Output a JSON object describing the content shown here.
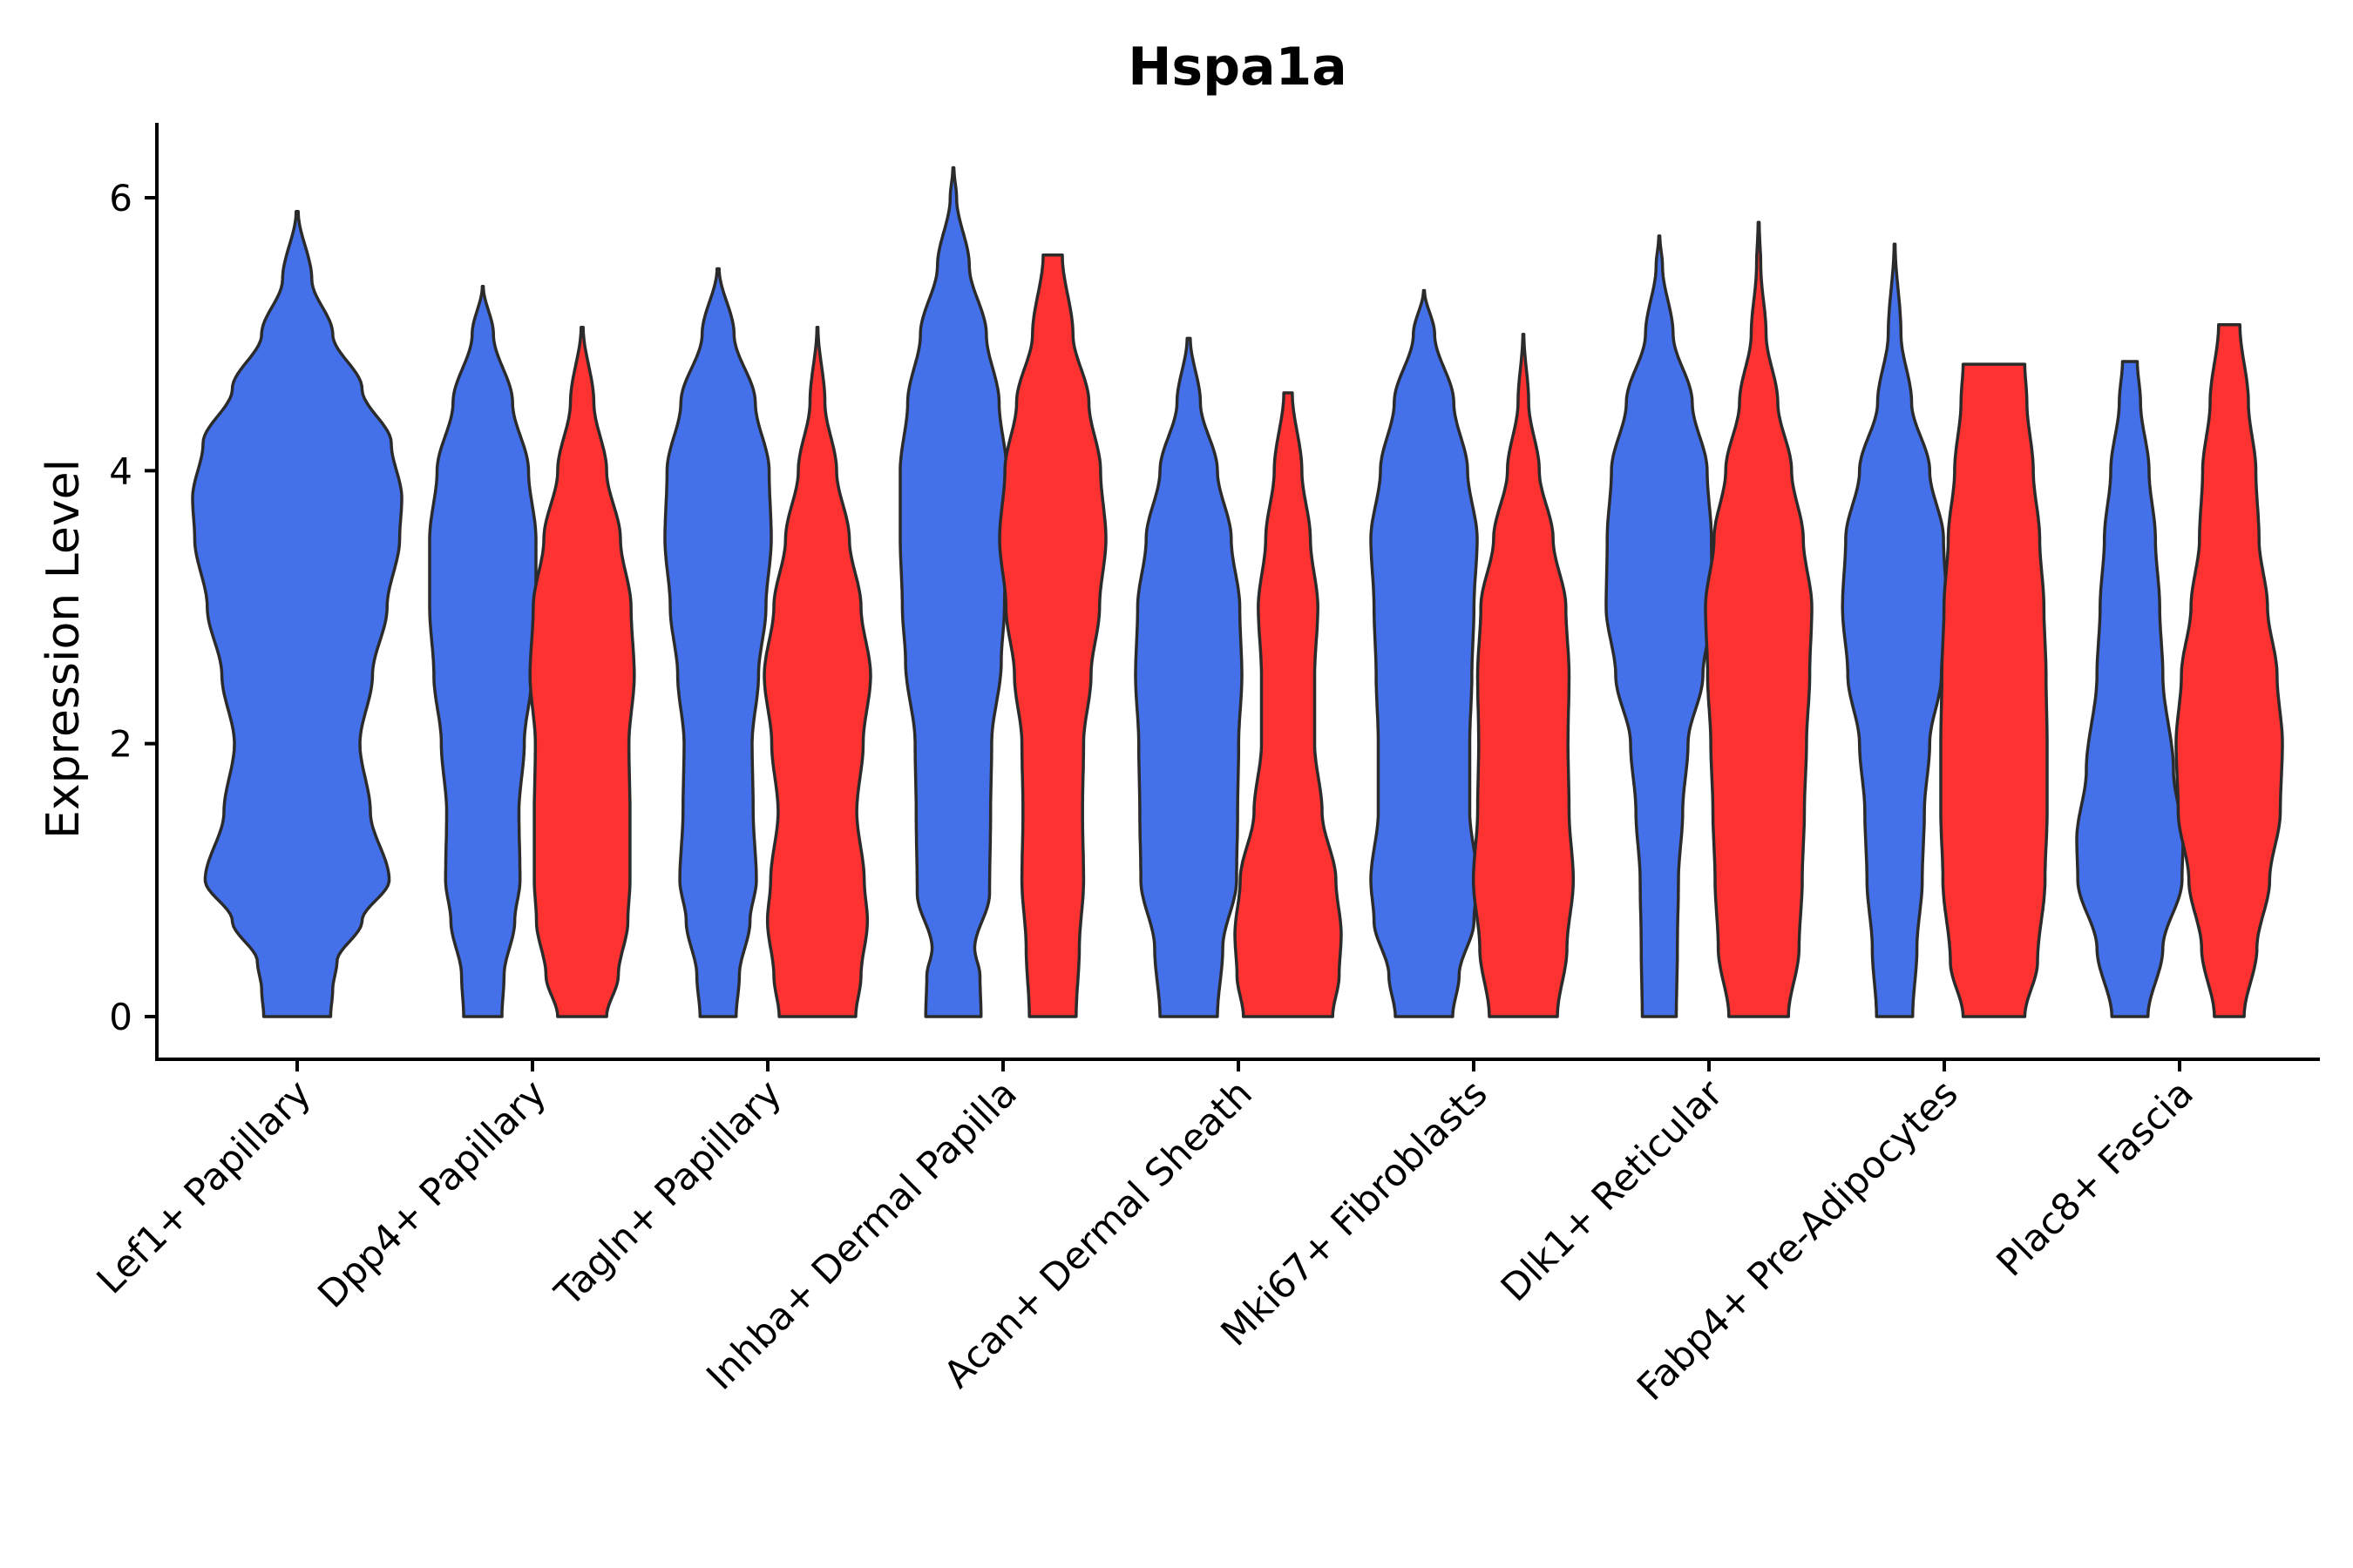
{
  "chart_data": {
    "type": "violin",
    "title": "Hspa1a",
    "ylabel": "Expression Level",
    "xlabel": "",
    "ylim": [
      -0.3,
      6.5
    ],
    "yticks": [
      "0",
      "2",
      "4",
      "6"
    ],
    "grid": false,
    "legend": "none",
    "series": [
      {
        "name": "blue",
        "color": "#4470EA"
      },
      {
        "name": "red",
        "color": "#FF3232"
      }
    ],
    "categories": [
      {
        "label": "Lef1+ Papillary",
        "violins": [
          {
            "series": "blue",
            "max": 5.9,
            "width": [
              [
                0,
                0.32
              ],
              [
                0.2,
                0.34
              ],
              [
                0.4,
                0.38
              ],
              [
                0.7,
                0.62
              ],
              [
                1.0,
                0.88
              ],
              [
                1.5,
                0.7
              ],
              [
                2.0,
                0.6
              ],
              [
                2.5,
                0.72
              ],
              [
                3.0,
                0.86
              ],
              [
                3.5,
                0.98
              ],
              [
                3.8,
                1.0
              ],
              [
                4.2,
                0.9
              ],
              [
                4.6,
                0.62
              ],
              [
                5.0,
                0.34
              ],
              [
                5.4,
                0.14
              ],
              [
                5.9,
                0.01
              ]
            ]
          }
        ]
      },
      {
        "label": "Dpp4+ Papillary",
        "violins": [
          {
            "series": "blue",
            "max": 5.35,
            "width": [
              [
                0,
                0.36
              ],
              [
                0.3,
                0.4
              ],
              [
                0.7,
                0.6
              ],
              [
                1.0,
                0.7
              ],
              [
                1.5,
                0.68
              ],
              [
                2.0,
                0.78
              ],
              [
                2.5,
                0.92
              ],
              [
                3.0,
                1.0
              ],
              [
                3.5,
                1.0
              ],
              [
                4.0,
                0.86
              ],
              [
                4.5,
                0.56
              ],
              [
                5.0,
                0.2
              ],
              [
                5.35,
                0.01
              ]
            ]
          },
          {
            "series": "red",
            "max": 5.05,
            "width": [
              [
                0,
                0.46
              ],
              [
                0.3,
                0.68
              ],
              [
                0.7,
                0.86
              ],
              [
                1.0,
                0.9
              ],
              [
                1.5,
                0.9
              ],
              [
                2.0,
                0.88
              ],
              [
                2.5,
                0.98
              ],
              [
                3.0,
                0.92
              ],
              [
                3.5,
                0.72
              ],
              [
                4.0,
                0.46
              ],
              [
                4.5,
                0.22
              ],
              [
                5.05,
                0.02
              ]
            ]
          }
        ]
      },
      {
        "label": "Tagln+ Papillary",
        "violins": [
          {
            "series": "blue",
            "max": 5.48,
            "width": [
              [
                0,
                0.34
              ],
              [
                0.3,
                0.4
              ],
              [
                0.7,
                0.6
              ],
              [
                1.0,
                0.72
              ],
              [
                1.5,
                0.66
              ],
              [
                2.0,
                0.64
              ],
              [
                2.5,
                0.76
              ],
              [
                3.0,
                0.9
              ],
              [
                3.5,
                1.0
              ],
              [
                4.0,
                0.96
              ],
              [
                4.5,
                0.7
              ],
              [
                5.0,
                0.3
              ],
              [
                5.48,
                0.02
              ]
            ]
          },
          {
            "series": "red",
            "max": 5.05,
            "width": [
              [
                0,
                0.72
              ],
              [
                0.3,
                0.82
              ],
              [
                0.7,
                0.94
              ],
              [
                1.0,
                0.88
              ],
              [
                1.5,
                0.74
              ],
              [
                2.0,
                0.86
              ],
              [
                2.5,
                1.0
              ],
              [
                3.0,
                0.82
              ],
              [
                3.5,
                0.6
              ],
              [
                4.0,
                0.36
              ],
              [
                4.5,
                0.14
              ],
              [
                5.05,
                0.01
              ]
            ]
          }
        ]
      },
      {
        "label": "Inhba+ Dermal Papilla",
        "violins": [
          {
            "series": "blue",
            "max": 6.22,
            "width": [
              [
                0,
                0.52
              ],
              [
                0.3,
                0.5
              ],
              [
                0.5,
                0.4
              ],
              [
                0.9,
                0.68
              ],
              [
                1.5,
                0.7
              ],
              [
                2.0,
                0.72
              ],
              [
                2.6,
                0.9
              ],
              [
                3.0,
                0.96
              ],
              [
                3.5,
                1.0
              ],
              [
                4.0,
                1.0
              ],
              [
                4.5,
                0.86
              ],
              [
                5.0,
                0.62
              ],
              [
                5.5,
                0.3
              ],
              [
                6.0,
                0.06
              ],
              [
                6.22,
                0.01
              ]
            ]
          },
          {
            "series": "red",
            "max": 5.58,
            "width": [
              [
                0,
                0.44
              ],
              [
                0.5,
                0.5
              ],
              [
                1.0,
                0.58
              ],
              [
                1.5,
                0.56
              ],
              [
                2.0,
                0.58
              ],
              [
                2.5,
                0.72
              ],
              [
                3.0,
                0.88
              ],
              [
                3.5,
                1.0
              ],
              [
                4.0,
                0.9
              ],
              [
                4.5,
                0.68
              ],
              [
                5.0,
                0.38
              ],
              [
                5.58,
                0.18
              ]
            ]
          }
        ]
      },
      {
        "label": "Acan+ Dermal Sheath",
        "violins": [
          {
            "series": "blue",
            "max": 4.97,
            "width": [
              [
                0,
                0.54
              ],
              [
                0.5,
                0.64
              ],
              [
                1.0,
                0.9
              ],
              [
                1.5,
                0.92
              ],
              [
                2.0,
                0.94
              ],
              [
                2.5,
                1.0
              ],
              [
                3.0,
                0.96
              ],
              [
                3.5,
                0.8
              ],
              [
                4.0,
                0.54
              ],
              [
                4.5,
                0.22
              ],
              [
                4.97,
                0.03
              ]
            ]
          },
          {
            "series": "red",
            "max": 4.57,
            "width": [
              [
                0,
                0.84
              ],
              [
                0.3,
                0.96
              ],
              [
                0.6,
                1.0
              ],
              [
                1.0,
                0.9
              ],
              [
                1.5,
                0.64
              ],
              [
                2.0,
                0.5
              ],
              [
                2.5,
                0.5
              ],
              [
                3.0,
                0.56
              ],
              [
                3.5,
                0.42
              ],
              [
                4.0,
                0.26
              ],
              [
                4.57,
                0.08
              ]
            ]
          }
        ]
      },
      {
        "label": "Mki67+ Fibroblasts",
        "violins": [
          {
            "series": "blue",
            "max": 5.32,
            "width": [
              [
                0,
                0.54
              ],
              [
                0.3,
                0.66
              ],
              [
                0.7,
                0.94
              ],
              [
                1.0,
                1.0
              ],
              [
                1.5,
                0.86
              ],
              [
                2.0,
                0.86
              ],
              [
                2.5,
                0.9
              ],
              [
                3.0,
                0.94
              ],
              [
                3.5,
                1.0
              ],
              [
                4.0,
                0.82
              ],
              [
                4.5,
                0.56
              ],
              [
                5.0,
                0.2
              ],
              [
                5.32,
                0.01
              ]
            ]
          },
          {
            "series": "red",
            "max": 5.0,
            "width": [
              [
                0,
                0.64
              ],
              [
                0.5,
                0.82
              ],
              [
                1.0,
                0.94
              ],
              [
                1.5,
                0.86
              ],
              [
                2.0,
                0.84
              ],
              [
                2.5,
                0.86
              ],
              [
                3.0,
                0.8
              ],
              [
                3.5,
                0.56
              ],
              [
                4.0,
                0.3
              ],
              [
                4.5,
                0.1
              ],
              [
                5.0,
                0.01
              ]
            ]
          }
        ]
      },
      {
        "label": "Dlk1+ Reticular",
        "violins": [
          {
            "series": "blue",
            "max": 5.72,
            "width": [
              [
                0,
                0.32
              ],
              [
                0.5,
                0.34
              ],
              [
                1.0,
                0.36
              ],
              [
                1.5,
                0.44
              ],
              [
                2.0,
                0.54
              ],
              [
                2.5,
                0.82
              ],
              [
                3.0,
                1.0
              ],
              [
                3.5,
                0.98
              ],
              [
                4.0,
                0.9
              ],
              [
                4.5,
                0.62
              ],
              [
                5.0,
                0.26
              ],
              [
                5.5,
                0.06
              ],
              [
                5.72,
                0.01
              ]
            ]
          },
          {
            "series": "red",
            "max": 5.82,
            "width": [
              [
                0,
                0.56
              ],
              [
                0.5,
                0.76
              ],
              [
                1.0,
                0.82
              ],
              [
                1.5,
                0.86
              ],
              [
                2.0,
                0.9
              ],
              [
                2.5,
                0.96
              ],
              [
                3.0,
                1.0
              ],
              [
                3.5,
                0.84
              ],
              [
                4.0,
                0.62
              ],
              [
                4.5,
                0.36
              ],
              [
                5.0,
                0.14
              ],
              [
                5.5,
                0.04
              ],
              [
                5.82,
                0.01
              ]
            ]
          }
        ]
      },
      {
        "label": "Fabp4+ Pre-Adipocytes",
        "violins": [
          {
            "series": "blue",
            "max": 5.66,
            "width": [
              [
                0,
                0.34
              ],
              [
                0.5,
                0.42
              ],
              [
                1.0,
                0.52
              ],
              [
                1.5,
                0.56
              ],
              [
                2.0,
                0.66
              ],
              [
                2.5,
                0.88
              ],
              [
                3.0,
                0.98
              ],
              [
                3.5,
                0.92
              ],
              [
                4.0,
                0.66
              ],
              [
                4.5,
                0.32
              ],
              [
                5.0,
                0.12
              ],
              [
                5.66,
                0.01
              ]
            ]
          },
          {
            "series": "red",
            "max": 4.78,
            "width": [
              [
                0,
                0.58
              ],
              [
                0.4,
                0.82
              ],
              [
                1.0,
                0.96
              ],
              [
                1.5,
                1.0
              ],
              [
                2.0,
                1.0
              ],
              [
                2.5,
                0.98
              ],
              [
                3.0,
                0.94
              ],
              [
                3.5,
                0.86
              ],
              [
                4.0,
                0.74
              ],
              [
                4.5,
                0.62
              ],
              [
                4.78,
                0.58
              ]
            ]
          }
        ]
      },
      {
        "label": "Plac8+ Fascia",
        "violins": [
          {
            "series": "blue",
            "max": 4.8,
            "width": [
              [
                0,
                0.34
              ],
              [
                0.5,
                0.62
              ],
              [
                1.0,
                0.98
              ],
              [
                1.3,
                1.0
              ],
              [
                1.8,
                0.82
              ],
              [
                2.5,
                0.62
              ],
              [
                3.0,
                0.56
              ],
              [
                3.5,
                0.48
              ],
              [
                4.0,
                0.36
              ],
              [
                4.5,
                0.2
              ],
              [
                4.8,
                0.14
              ]
            ]
          },
          {
            "series": "red",
            "max": 5.07,
            "width": [
              [
                0,
                0.28
              ],
              [
                0.5,
                0.52
              ],
              [
                1.0,
                0.76
              ],
              [
                1.5,
                0.96
              ],
              [
                2.0,
                1.0
              ],
              [
                2.5,
                0.9
              ],
              [
                3.0,
                0.72
              ],
              [
                3.5,
                0.56
              ],
              [
                4.0,
                0.5
              ],
              [
                4.5,
                0.36
              ],
              [
                5.07,
                0.2
              ]
            ]
          }
        ]
      }
    ]
  }
}
